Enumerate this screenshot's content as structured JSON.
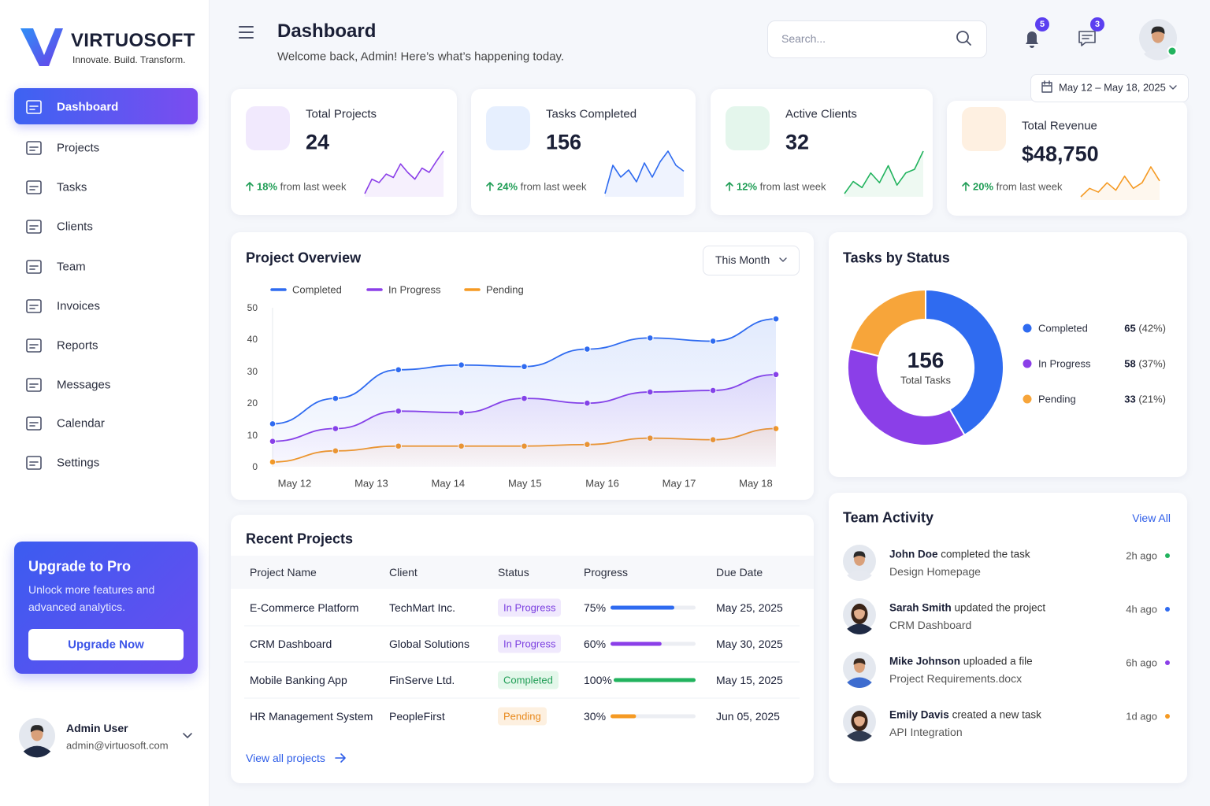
{
  "brand": {
    "name": "VIRTUOSOFT",
    "tagline": "Innovate. Build. Transform."
  },
  "nav": [
    "Dashboard",
    "Projects",
    "Tasks",
    "Clients",
    "Team",
    "Invoices",
    "Reports",
    "Messages",
    "Calendar",
    "Settings"
  ],
  "upgrade": {
    "title": "Upgrade to Pro",
    "text": [
      "Unlock more features and",
      "advanced analytics."
    ],
    "button": "Upgrade Now"
  },
  "user": {
    "name": "Admin User",
    "email": "admin@virtuosoft.com"
  },
  "header": {
    "title": "Dashboard",
    "subtitle": "Welcome back, Admin! Here’s what’s happening today.",
    "search_placeholder": "Search...",
    "notifications": 5,
    "messages": 3,
    "date_range": "May 12 – May 18, 2025"
  },
  "stats": [
    {
      "label": "Total Projects",
      "value": "24",
      "change": "18%",
      "change_text": "from last week",
      "color": "#8b3fe8",
      "tint": "#f1e9fd",
      "trend": [
        5,
        22,
        18,
        28,
        24,
        40,
        30,
        22,
        35,
        30,
        43,
        55
      ]
    },
    {
      "label": "Tasks Completed",
      "value": "156",
      "change": "24%",
      "change_text": "from last week",
      "color": "#2f6bf0",
      "tint": "#e6effe",
      "trend": [
        8,
        32,
        22,
        28,
        18,
        34,
        22,
        35,
        44,
        32,
        27
      ]
    },
    {
      "label": "Active Clients",
      "value": "32",
      "change": "12%",
      "change_text": "from last week",
      "color": "#22b35e",
      "tint": "#e4f6ec",
      "trend": [
        5,
        15,
        10,
        22,
        14,
        28,
        12,
        22,
        25,
        40
      ]
    },
    {
      "label": "Total Revenue",
      "value": "$48,750",
      "change": "20%",
      "change_text": "from last week",
      "color": "#f59a23",
      "tint": "#fef0e1",
      "trend": [
        3,
        12,
        8,
        18,
        10,
        25,
        12,
        18,
        35,
        20
      ]
    }
  ],
  "chart_data": [
    {
      "type": "line",
      "title": "Project Overview",
      "filter": "This Month",
      "x": [
        0,
        1,
        2,
        3,
        4,
        5,
        6,
        7,
        8
      ],
      "xlim": [
        0,
        8
      ],
      "xticks": [
        {
          "value": 0.35,
          "label": "May 12"
        },
        {
          "value": 1.57,
          "label": "May 13"
        },
        {
          "value": 2.79,
          "label": "May 14"
        },
        {
          "value": 4.01,
          "label": "May 15"
        },
        {
          "value": 5.24,
          "label": "May 16"
        },
        {
          "value": 6.46,
          "label": "May 17"
        },
        {
          "value": 7.68,
          "label": "May 18"
        }
      ],
      "ylim": [
        0,
        50
      ],
      "yticks": [
        0,
        10,
        20,
        30,
        40,
        50
      ],
      "series": [
        {
          "name": "Completed",
          "color": "#2f6bf0",
          "values": [
            13.5,
            21.5,
            30.5,
            32,
            31.5,
            37,
            40.5,
            39.5,
            46.5
          ]
        },
        {
          "name": "In Progress",
          "color": "#8b3fe8",
          "values": [
            8,
            12,
            17.5,
            17,
            21.5,
            20,
            23.5,
            24,
            29
          ]
        },
        {
          "name": "Pending",
          "color": "#f59a23",
          "values": [
            1.5,
            5,
            6.5,
            6.5,
            6.5,
            7,
            9,
            8.5,
            12
          ]
        }
      ]
    },
    {
      "type": "pie",
      "title": "Tasks by Status",
      "categories": [
        "Completed",
        "In Progress",
        "Pending"
      ],
      "values": [
        65,
        58,
        33
      ],
      "percents": [
        42,
        37,
        21
      ],
      "percent_labels": [
        "(42%)",
        "(37%)",
        "(21%)"
      ],
      "colors": [
        "#2f6bf0",
        "#8b3fe8",
        "#f7a53a"
      ],
      "center_value": 156,
      "center_label": "Total Tasks"
    }
  ],
  "projects": {
    "title": "Recent Projects",
    "columns": [
      "Project Name",
      "Client",
      "Status",
      "Progress",
      "Due Date"
    ],
    "rows": [
      {
        "name": "E-Commerce Platform",
        "client": "TechMart Inc.",
        "status": "In Progress",
        "status_color": "#7b3fe0",
        "status_bg": "#f0e9fd",
        "progress": 75,
        "progress_label": "75%",
        "bar_color": "#2f6bf0",
        "due": "May 25, 2025"
      },
      {
        "name": "CRM Dashboard",
        "client": "Global Solutions",
        "status": "In Progress",
        "status_color": "#7b3fe0",
        "status_bg": "#f0e9fd",
        "progress": 60,
        "progress_label": "60%",
        "bar_color": "#8b3fe8",
        "due": "May 30, 2025"
      },
      {
        "name": "Mobile Banking App",
        "client": "FinServe Ltd.",
        "status": "Completed",
        "status_color": "#1f9d55",
        "status_bg": "#e3f7ea",
        "progress": 100,
        "progress_label": "100%",
        "bar_color": "#22b35e",
        "due": "May 15, 2025"
      },
      {
        "name": "HR Management System",
        "client": "PeopleFirst",
        "status": "Pending",
        "status_color": "#e8891c",
        "status_bg": "#fdf0e0",
        "progress": 30,
        "progress_label": "30%",
        "bar_color": "#f59a23",
        "due": "Jun 05, 2025"
      }
    ],
    "link": "View all projects"
  },
  "activity": {
    "title": "Team Activity",
    "link": "View All",
    "items": [
      {
        "name": "John Doe",
        "action": "completed the task",
        "target": "Design Homepage",
        "time": "2h ago",
        "color": "#22b35e"
      },
      {
        "name": "Sarah Smith",
        "action": "updated the project",
        "target": "CRM Dashboard",
        "time": "4h ago",
        "color": "#2f6bf0"
      },
      {
        "name": "Mike Johnson",
        "action": "uploaded a file",
        "target": "Project Requirements.docx",
        "time": "6h ago",
        "color": "#8b3fe8"
      },
      {
        "name": "Emily Davis",
        "action": "created a new task",
        "target": "API Integration",
        "time": "1d ago",
        "color": "#f59a23"
      }
    ]
  }
}
